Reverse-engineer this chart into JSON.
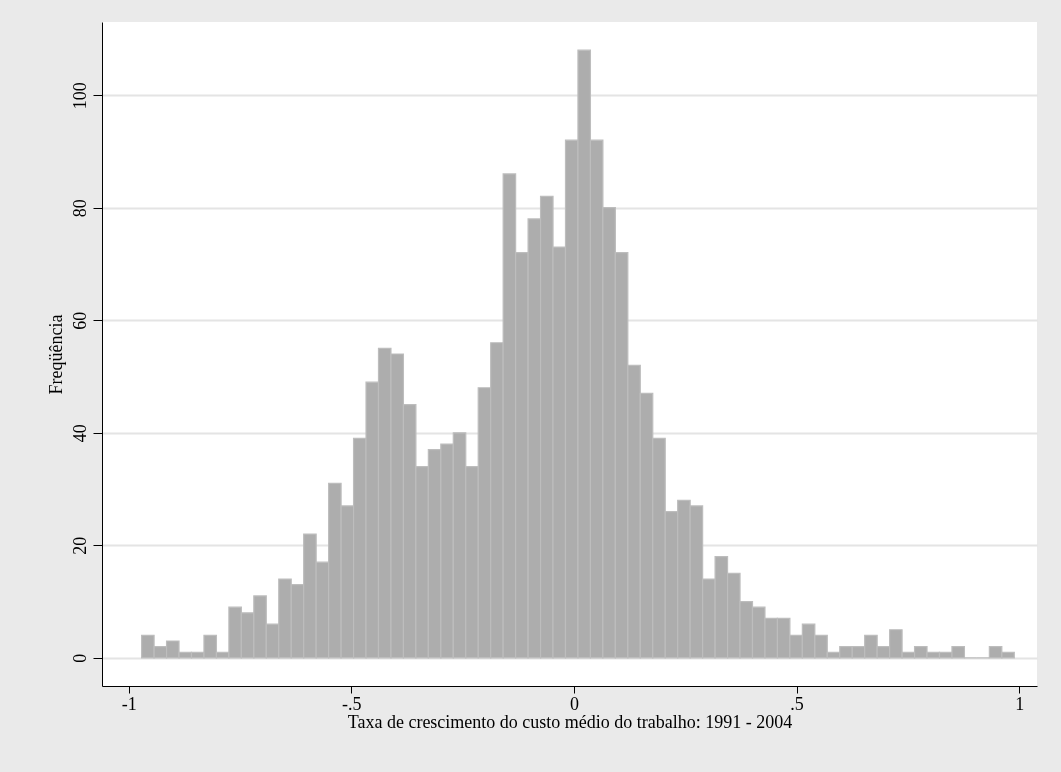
{
  "chart_data": {
    "type": "histogram",
    "xlabel": "Taxa de crescimento do custo médio do trabalho: 1991 - 2004",
    "ylabel": "Freqüência",
    "bins": [
      -0.971,
      -0.943,
      -0.915,
      -0.887,
      -0.859,
      -0.831,
      -0.803,
      -0.775,
      -0.747,
      -0.719,
      -0.691,
      -0.663,
      -0.635,
      -0.607,
      -0.579,
      -0.551,
      -0.523,
      -0.495,
      -0.467,
      -0.439,
      -0.411,
      -0.383,
      -0.355,
      -0.327,
      -0.299,
      -0.271,
      -0.243,
      -0.215,
      -0.187,
      -0.159,
      -0.131,
      -0.103,
      -0.075,
      -0.047,
      -0.019,
      0.009,
      0.037,
      0.065,
      0.093,
      0.121,
      0.149,
      0.177,
      0.205,
      0.233,
      0.261,
      0.289,
      0.317,
      0.345,
      0.373,
      0.401,
      0.429,
      0.457,
      0.485,
      0.513,
      0.541,
      0.569,
      0.597,
      0.625,
      0.653,
      0.681,
      0.709,
      0.737,
      0.765,
      0.793,
      0.821,
      0.849,
      0.877,
      0.905,
      0.933,
      0.961,
      0.989
    ],
    "values": [
      4,
      2,
      3,
      1,
      1,
      4,
      1,
      9,
      8,
      11,
      6,
      14,
      13,
      22,
      17,
      31,
      27,
      39,
      49,
      55,
      54,
      45,
      34,
      37,
      38,
      40,
      34,
      48,
      56,
      86,
      72,
      78,
      82,
      73,
      92,
      108,
      92,
      80,
      72,
      52,
      47,
      39,
      26,
      28,
      27,
      14,
      18,
      15,
      10,
      9,
      7,
      7,
      4,
      6,
      4,
      1,
      2,
      2,
      4,
      2,
      5,
      1,
      2,
      1,
      1,
      2,
      0,
      0,
      2,
      1
    ],
    "color": "#adadad",
    "xlim": [
      -1.06,
      1.04
    ],
    "ylim": [
      -5,
      113
    ],
    "xticks": [
      {
        "value": -1,
        "label": "-1"
      },
      {
        "value": -0.5,
        "label": "-.5"
      },
      0,
      {
        "value": 0.5,
        "label": ".5"
      },
      1
    ],
    "yticks": [
      0,
      20,
      40,
      60,
      80,
      100
    ],
    "grid": "y"
  }
}
